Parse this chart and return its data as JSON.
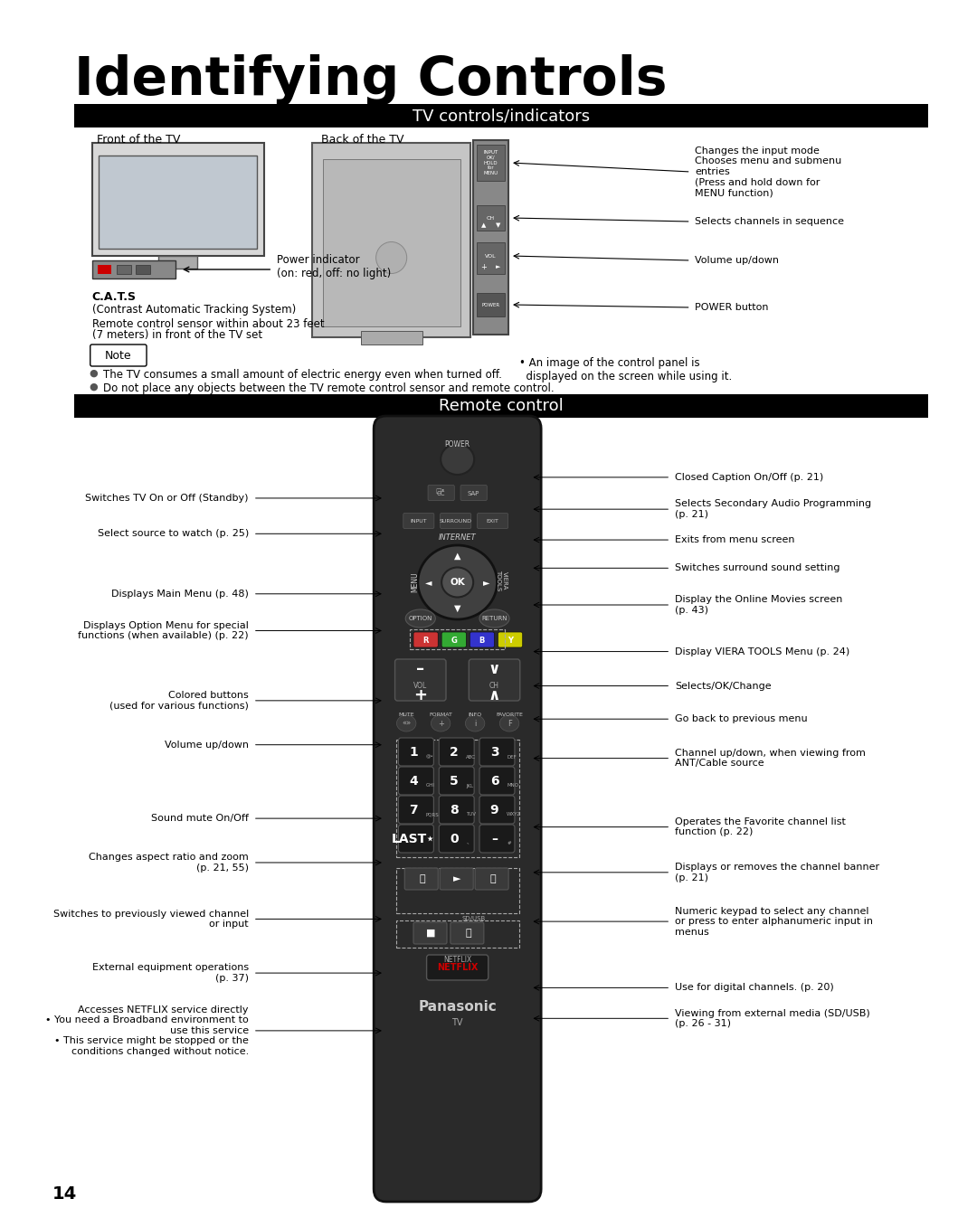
{
  "title": "Identifying Controls",
  "section1_title": "TV controls/indicators",
  "section2_title": "Remote control",
  "bg_color": "#ffffff",
  "section_bg": "#000000",
  "section_fg": "#ffffff",
  "title_fontsize": 42,
  "section_fontsize": 13,
  "body_fontsize": 9,
  "page_number": "14",
  "tv_section": {
    "front_label": "Front of the TV",
    "back_label": "Back of the TV",
    "power_indicator": "Power indicator\n(on: red, off: no light)",
    "note_text": "Note",
    "bullet1": "The TV consumes a small amount of electric energy even when turned off.",
    "bullet2": "Do not place any objects between the TV remote control sensor and remote control.",
    "panel_note": "• An image of the control panel is\n  displayed on the screen while using it.",
    "cats1": "C.A.T.S",
    "cats2": "(Contrast Automatic Tracking System)",
    "cats3": "Remote control sensor within about 23 feet",
    "cats4": "(7 meters) in front of the TV set"
  }
}
